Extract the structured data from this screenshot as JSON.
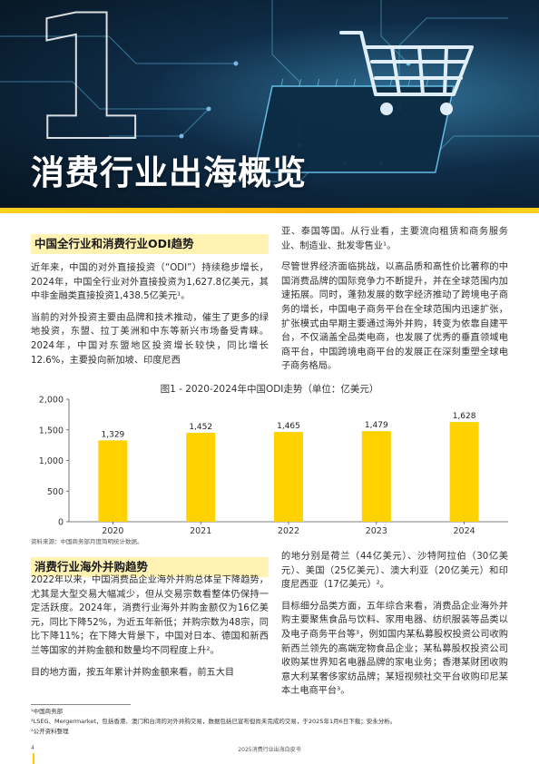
{
  "hero": {
    "number": "1",
    "title": "消费行业出海概览"
  },
  "section1": {
    "heading": "中国全行业和消费行业ODI趋势",
    "left_paragraphs": [
      "近年来，中国的对外直接投资（“ODI”）持续稳步增长，2024年，中国全行业对外直接投资为1,627.8亿美元，其中非金融类直接投资1,438.5亿美元¹。",
      "当前的对外投资主要由品牌和技术推动，催生了更多的绿地投资，东盟、拉丁美洲和中东等新兴市场备受青睐。2024年，中国对东盟地区投资增长较快，同比增长12.6%，主要投向新加坡、印度尼西"
    ],
    "right_paragraphs": [
      "亚、泰国等国。从行业看，主要流向租赁和商务服务业、制造业、批发零售业¹。",
      "尽管世界经济面临挑战，以高品质和高性价比著称的中国消费品牌的国际竞争力不断提升，并在全球范围内加速拓展。同时，蓬勃发展的数字经济推动了跨境电子商务的增长，中国电子商务平台在全球范围内迅速扩张，扩张模式由早期主要通过海外并购，转变为依靠自建平台，不仅涵盖全品类电商，也发展了优秀的垂直领域电商平台，中国跨境电商平台的发展正在深刻重塑全球电子商务格局。"
    ]
  },
  "chart_title": "图1 - 2020-2024年中国ODI走势（单位：亿美元）",
  "chart_data": {
    "type": "bar",
    "categories": [
      "2020",
      "2021",
      "2022",
      "2023",
      "2024"
    ],
    "values": [
      1329,
      1452,
      1465,
      1479,
      1628
    ],
    "value_labels": [
      "1,329",
      "1,452",
      "1,465",
      "1,479",
      "1,628"
    ],
    "yticks": [
      "0",
      "500",
      "1,000",
      "1,500",
      "2,000"
    ],
    "ylim": [
      0,
      2000
    ],
    "bar_color": "#ffd200",
    "grid": false,
    "legend": "none"
  },
  "source": "资料来源：中国商务部月度简明统计数据。",
  "section2": {
    "heading": "消费行业海外并购趋势",
    "left_paragraphs": [
      "2022年以来，中国消费品企业海外并购总体呈下降趋势，尤其是大型交易大幅减少，但从交易宗数看整体仍保持一定活跃度。2024年，消费行业海外并购金额仅为16亿美元，同比下降52%，为近五年新低；并购宗数为48宗，同比下降11%；在下降大背景下，中国对日本、德国和新西兰等国家的并购金额和数量均不同程度上升²。",
      "目的地方面，按五年累计并购金额来看，前五大目"
    ],
    "right_paragraphs": [
      "的地分别是荷兰（44亿美元）、沙特阿拉伯（30亿美元）、美国（25亿美元）、澳大利亚（20亿美元）和印度尼西亚（17亿美元）²。",
      "目标细分品类方面，五年综合来看，消费品企业海外并购主要聚焦食品与饮料、家用电器、纺织服装等品类以及电子商务平台等³，例如国内某私募股权投资公司收购新西兰领先的高端宠物食品企业；某私募股权投资公司收购某世界知名电器品牌的家电业务；香港某财团收购意大利某奢侈家纺品牌；某短视频社交平台收购印尼某本土电商平台³。"
    ]
  },
  "footnotes": [
    "¹中国商务部",
    "²LSEG、Mergermarket，包括香港、澳门和台湾的对外并购交易，数据包括已宣布但尚未完成的交易，于2025年1月6日下载；安永分析。",
    "³公开资料整理"
  ],
  "footer": {
    "page_number": "4",
    "title": "2025消费行业出海白皮书"
  },
  "colors": {
    "accent_yellow": "#ffd200",
    "heading_bg": "#fff2b3"
  }
}
